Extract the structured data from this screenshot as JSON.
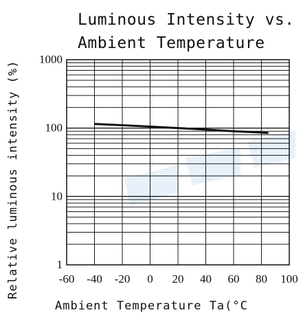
{
  "chart_data": {
    "type": "line",
    "title_lines": [
      "Luminous Intensity vs.",
      "Ambient Temperature"
    ],
    "xlabel": "Ambient Temperature Ta(°C",
    "ylabel": "Relative luminous intensity (%)",
    "x_scale": "linear",
    "y_scale": "log",
    "xlim": [
      -60,
      100
    ],
    "ylim": [
      1,
      1000
    ],
    "x_ticks": [
      -60,
      -40,
      -20,
      0,
      20,
      40,
      60,
      80,
      100
    ],
    "x_tick_labels": [
      "-60",
      "-40",
      "-20",
      "0",
      "20",
      "40",
      "60",
      "80",
      "100"
    ],
    "y_ticks": [
      1,
      10,
      100,
      1000
    ],
    "y_tick_labels": [
      "1",
      "10",
      "100",
      "1000"
    ],
    "grid": true,
    "series": [
      {
        "x": [
          -40,
          -20,
          0,
          20,
          40,
          60,
          85
        ],
        "y": [
          115,
          110,
          105,
          100,
          95,
          90,
          85
        ]
      }
    ],
    "colors": {
      "line": "#111111",
      "grid": "#1a1a1a",
      "watermark": "#cfe1f4"
    }
  }
}
